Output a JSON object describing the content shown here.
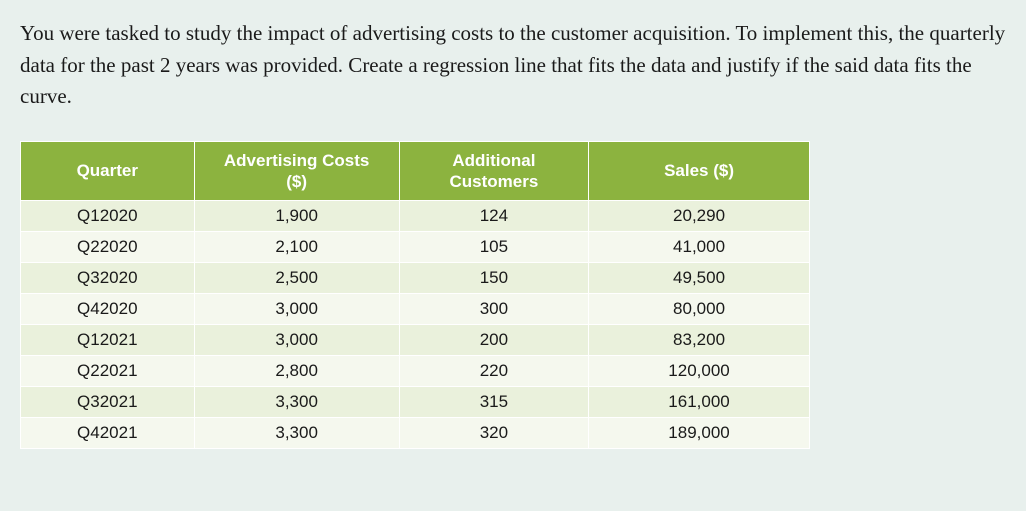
{
  "prompt_text": "You were tasked to study the impact of advertising costs to the customer acquisition. To implement this, the quarterly data for the past 2 years was provided. Create a regression line that fits the data and justify if the said data fits the curve.",
  "table": {
    "header_bg": "#8cb33f",
    "header_fg": "#ffffff",
    "row_odd_bg": "#eaf1dc",
    "row_even_bg": "#f5f8ee",
    "border_color": "#ffffff",
    "columns": [
      {
        "line1": "Quarter",
        "line2": ""
      },
      {
        "line1": "Advertising Costs",
        "line2": "($)"
      },
      {
        "line1": "Additional",
        "line2": "Customers"
      },
      {
        "line1": "Sales ($)",
        "line2": ""
      }
    ],
    "rows": [
      [
        "Q12020",
        "1,900",
        "124",
        "20,290"
      ],
      [
        "Q22020",
        "2,100",
        "105",
        "41,000"
      ],
      [
        "Q32020",
        "2,500",
        "150",
        "49,500"
      ],
      [
        "Q42020",
        "3,000",
        "300",
        "80,000"
      ],
      [
        "Q12021",
        "3,000",
        "200",
        "83,200"
      ],
      [
        "Q22021",
        "2,800",
        "220",
        "120,000"
      ],
      [
        "Q32021",
        "3,300",
        "315",
        "161,000"
      ],
      [
        "Q42021",
        "3,300",
        "320",
        "189,000"
      ]
    ]
  },
  "page_bg": "#e8f0ed",
  "text_color": "#1a1a1a"
}
